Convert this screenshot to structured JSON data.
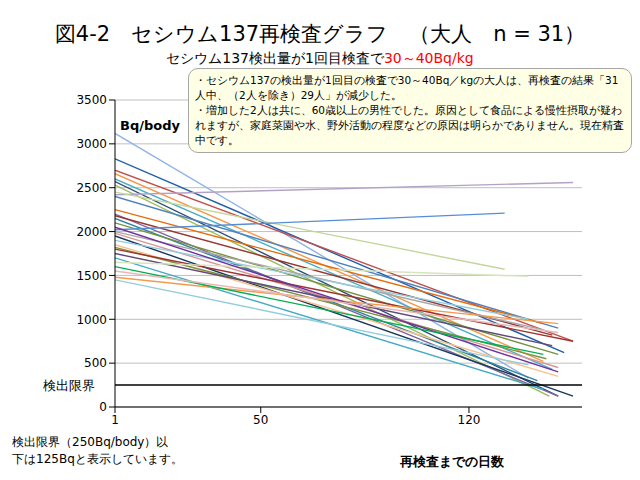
{
  "chart_data": {
    "type": "line",
    "title": "図4-2　セシウム137再検査グラフ　（大人　n = 31）",
    "subtitle": [
      "セシウム137検出量が1回目検査で",
      "30～40Bq/kg"
    ],
    "y_label": "Bq/body",
    "x_label": "再検査までの日数",
    "annotation": [
      "・セシウム137の検出量が1回目の検査で30～40Bq／kgの大人は、再検査の結果「31人中、（2人を除き）29人」が減少した。",
      "・増加した2人は共に、60歳以上の男性でした。原因として食品による慢性摂取が疑われますが、家庭菜園や水、野外活動の程度などの原因は明らかでありません。現在精査中です。"
    ],
    "note": [
      "検出限界（250Bq/body）以",
      "下は125Bqと表示しています。"
    ],
    "reference_line": {
      "value": 250,
      "label": "検出限界"
    },
    "xlim": [
      1,
      158
    ],
    "xticks": [
      1,
      50,
      120
    ],
    "ylim": [
      0,
      3500
    ],
    "yticks": [
      0,
      500,
      1000,
      1500,
      2000,
      2500,
      3000,
      3500
    ],
    "grid": true,
    "series": [
      {
        "color": "#8EB4E3",
        "x": [
          1,
          140
        ],
        "values": [
          3120,
          330
        ]
      },
      {
        "color": "#1F5FA8",
        "x": [
          1,
          152
        ],
        "values": [
          2830,
          620
        ]
      },
      {
        "color": "#C0504D",
        "x": [
          1,
          155
        ],
        "values": [
          2700,
          750
        ]
      },
      {
        "color": "#F79646",
        "x": [
          1,
          145
        ],
        "values": [
          2660,
          520
        ]
      },
      {
        "color": "#4BACC6",
        "x": [
          1,
          148
        ],
        "values": [
          2600,
          430
        ]
      },
      {
        "color": "#2C4D75",
        "x": [
          1,
          150
        ],
        "values": [
          2570,
          125
        ]
      },
      {
        "color": "#9BBB59",
        "x": [
          1,
          147
        ],
        "values": [
          2530,
          125
        ]
      },
      {
        "color": "#B3A2C7",
        "x": [
          1,
          155
        ],
        "values": [
          2420,
          2560
        ]
      },
      {
        "color": "#C3D69B",
        "x": [
          1,
          132
        ],
        "values": [
          2450,
          1570
        ]
      },
      {
        "color": "#4F81BD",
        "x": [
          1,
          150
        ],
        "values": [
          2400,
          900
        ]
      },
      {
        "color": "#E46C0A",
        "x": [
          1,
          145
        ],
        "values": [
          2250,
          950
        ]
      },
      {
        "color": "#8064A2",
        "x": [
          1,
          150
        ],
        "values": [
          2200,
          125
        ]
      },
      {
        "color": "#953735",
        "x": [
          1,
          148
        ],
        "values": [
          2180,
          820
        ]
      },
      {
        "color": "#31859C",
        "x": [
          1,
          143
        ],
        "values": [
          2150,
          300
        ]
      },
      {
        "color": "#76923C",
        "x": [
          1,
          150
        ],
        "values": [
          2100,
          600
        ]
      },
      {
        "color": "#558ED5",
        "x": [
          1,
          132
        ],
        "values": [
          2020,
          2210
        ]
      },
      {
        "color": "#A6A6A6",
        "x": [
          1,
          145
        ],
        "values": [
          2000,
          880
        ]
      },
      {
        "color": "#D99694",
        "x": [
          1,
          150
        ],
        "values": [
          1980,
          450
        ]
      },
      {
        "color": "#17375E",
        "x": [
          1,
          155
        ],
        "values": [
          1950,
          125
        ]
      },
      {
        "color": "#92CDDC",
        "x": [
          1,
          140
        ],
        "values": [
          1900,
          1000
        ]
      },
      {
        "color": "#FAC090",
        "x": [
          1,
          150
        ],
        "values": [
          1850,
          350
        ]
      },
      {
        "color": "#77933C",
        "x": [
          1,
          146
        ],
        "values": [
          1820,
          550
        ]
      },
      {
        "color": "#A0312E",
        "x": [
          1,
          155
        ],
        "values": [
          1800,
          750
        ]
      },
      {
        "color": "#604A7B",
        "x": [
          1,
          148
        ],
        "values": [
          1750,
          700
        ]
      },
      {
        "color": "#46AAC4",
        "x": [
          1,
          145
        ],
        "values": [
          1700,
          200
        ]
      },
      {
        "color": "#D7E4BD",
        "x": [
          1,
          140
        ],
        "values": [
          1650,
          1490
        ]
      },
      {
        "color": "#F59A4C",
        "x": [
          1,
          150
        ],
        "values": [
          1480,
          950
        ]
      },
      {
        "color": "#93CDDD",
        "x": [
          1,
          140
        ],
        "values": [
          1450,
          480
        ]
      },
      {
        "color": "#7030A0",
        "x": [
          1,
          150
        ],
        "values": [
          2050,
          400
        ]
      },
      {
        "color": "#00B050",
        "x": [
          1,
          145
        ],
        "values": [
          1600,
          600
        ]
      },
      {
        "color": "#E6B9B8",
        "x": [
          1,
          150
        ],
        "values": [
          1550,
          850
        ]
      }
    ]
  }
}
